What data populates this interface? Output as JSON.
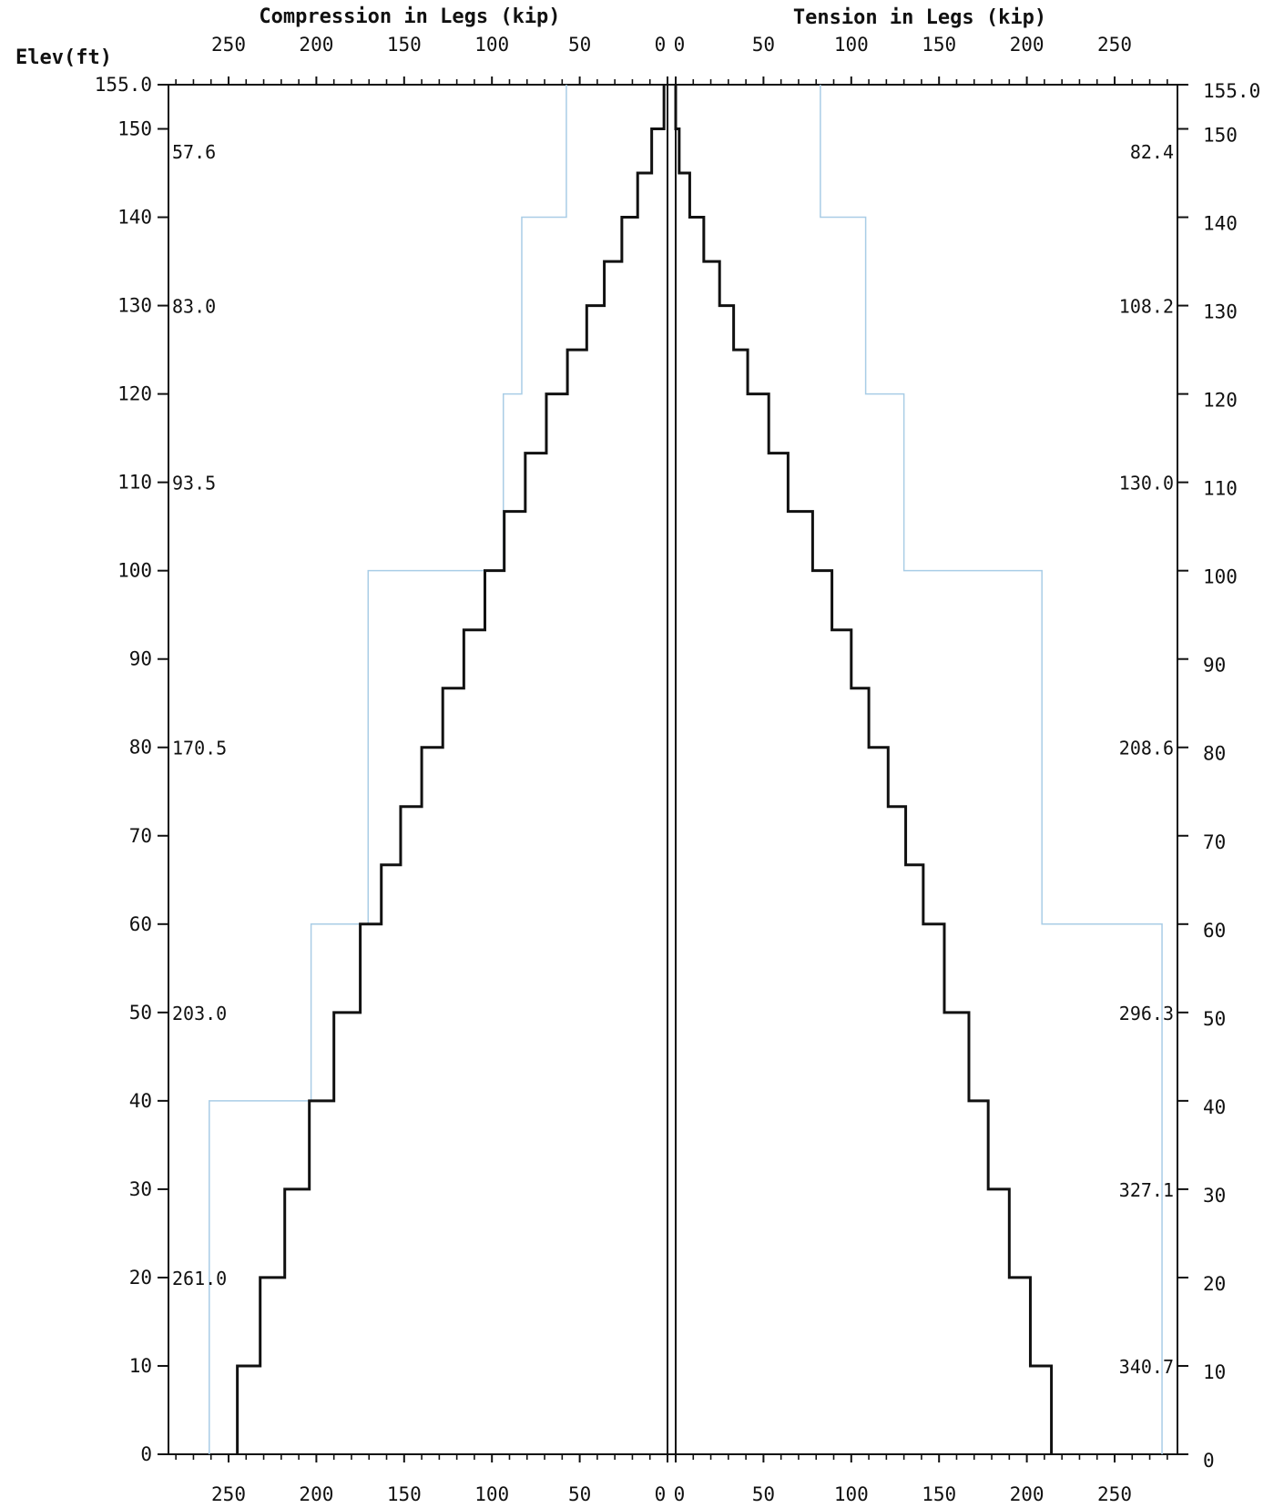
{
  "chart_data": {
    "type": "line",
    "panels": {
      "compression": {
        "title": "Compression in Legs (kip)",
        "ticks": [
          "250",
          "200",
          "150",
          "100",
          "50",
          "0"
        ]
      },
      "tension": {
        "title": "Tension in Legs (kip)",
        "ticks": [
          "0",
          "50",
          "100",
          "150",
          "200",
          "250"
        ]
      }
    },
    "ylabel": "Elev(ft)",
    "ylim": [
      0,
      155
    ],
    "xlim": [
      0,
      280
    ],
    "y_ticks_left": [
      "155.0",
      "150",
      "140",
      "130",
      "120",
      "110",
      "100",
      "90",
      "80",
      "70",
      "60",
      "50",
      "40",
      "30",
      "20",
      "10",
      "0"
    ],
    "y_ticks_right": [
      "155.0",
      "150",
      "140",
      "130",
      "120",
      "110",
      "100",
      "90",
      "80",
      "70",
      "60",
      "50",
      "40",
      "30",
      "20",
      "10",
      "0"
    ],
    "compression_force": [
      {
        "y0": 0,
        "y1": 10,
        "x": 245
      },
      {
        "y0": 10,
        "y1": 20,
        "x": 232
      },
      {
        "y0": 20,
        "y1": 30,
        "x": 218
      },
      {
        "y0": 30,
        "y1": 40,
        "x": 204
      },
      {
        "y0": 40,
        "y1": 50,
        "x": 190
      },
      {
        "y0": 50,
        "y1": 60,
        "x": 175
      },
      {
        "y0": 60,
        "y1": 66.7,
        "x": 163
      },
      {
        "y0": 66.7,
        "y1": 73.3,
        "x": 152
      },
      {
        "y0": 73.3,
        "y1": 80,
        "x": 140
      },
      {
        "y0": 80,
        "y1": 86.7,
        "x": 128
      },
      {
        "y0": 86.7,
        "y1": 93.3,
        "x": 116
      },
      {
        "y0": 93.3,
        "y1": 100,
        "x": 104
      },
      {
        "y0": 100,
        "y1": 106.7,
        "x": 93
      },
      {
        "y0": 106.7,
        "y1": 113.3,
        "x": 81
      },
      {
        "y0": 113.3,
        "y1": 120,
        "x": 69
      },
      {
        "y0": 120,
        "y1": 125,
        "x": 57
      },
      {
        "y0": 125,
        "y1": 130,
        "x": 46
      },
      {
        "y0": 130,
        "y1": 135,
        "x": 36
      },
      {
        "y0": 135,
        "y1": 140,
        "x": 26
      },
      {
        "y0": 140,
        "y1": 145,
        "x": 17
      },
      {
        "y0": 145,
        "y1": 150,
        "x": 9
      },
      {
        "y0": 150,
        "y1": 155,
        "x": 2
      }
    ],
    "tension_force": [
      {
        "y0": 0,
        "y1": 10,
        "x": 214
      },
      {
        "y0": 10,
        "y1": 20,
        "x": 202
      },
      {
        "y0": 20,
        "y1": 30,
        "x": 190
      },
      {
        "y0": 30,
        "y1": 40,
        "x": 178
      },
      {
        "y0": 40,
        "y1": 50,
        "x": 167
      },
      {
        "y0": 50,
        "y1": 60,
        "x": 153
      },
      {
        "y0": 60,
        "y1": 66.7,
        "x": 141
      },
      {
        "y0": 66.7,
        "y1": 73.3,
        "x": 131
      },
      {
        "y0": 73.3,
        "y1": 80,
        "x": 121
      },
      {
        "y0": 80,
        "y1": 86.7,
        "x": 110
      },
      {
        "y0": 86.7,
        "y1": 93.3,
        "x": 100
      },
      {
        "y0": 93.3,
        "y1": 100,
        "x": 89
      },
      {
        "y0": 100,
        "y1": 106.7,
        "x": 78
      },
      {
        "y0": 106.7,
        "y1": 113.3,
        "x": 64
      },
      {
        "y0": 113.3,
        "y1": 120,
        "x": 53
      },
      {
        "y0": 120,
        "y1": 125,
        "x": 41
      },
      {
        "y0": 125,
        "y1": 130,
        "x": 33
      },
      {
        "y0": 130,
        "y1": 135,
        "x": 25
      },
      {
        "y0": 135,
        "y1": 140,
        "x": 16
      },
      {
        "y0": 140,
        "y1": 145,
        "x": 8
      },
      {
        "y0": 145,
        "y1": 150,
        "x": 2
      },
      {
        "y0": 150,
        "y1": 155,
        "x": 0
      }
    ],
    "compression_capacity": [
      {
        "y0": 0,
        "y1": 40,
        "x": 261.0,
        "label": "261.0",
        "label_y": 20
      },
      {
        "y0": 40,
        "y1": 60,
        "x": 203.0,
        "label": "203.0",
        "label_y": 50
      },
      {
        "y0": 60,
        "y1": 100,
        "x": 170.5,
        "label": "170.5",
        "label_y": 80
      },
      {
        "y0": 100,
        "y1": 120,
        "x": 93.5,
        "label": "93.5",
        "label_y": 110
      },
      {
        "y0": 120,
        "y1": 140,
        "x": 83.0,
        "label": "83.0",
        "label_y": 130
      },
      {
        "y0": 140,
        "y1": 155,
        "x": 57.6,
        "label": "57.6",
        "label_y": 147.5
      }
    ],
    "tension_capacity": [
      {
        "y0": 0,
        "y1": 60,
        "x": 340.7,
        "label": "340.7",
        "label_y": 10
      },
      {
        "y0": 0,
        "y1": 0,
        "x": 0,
        "label": "327.1",
        "label_y": 30
      },
      {
        "y0": 60,
        "y1": 100,
        "x": 208.6,
        "label": "296.3",
        "label_y": 50
      },
      {
        "y0": 0,
        "y1": 0,
        "x": 0,
        "label": "208.6",
        "label_y": 80
      },
      {
        "y0": 100,
        "y1": 120,
        "x": 130.0,
        "label": "130.0",
        "label_y": 110
      },
      {
        "y0": 120,
        "y1": 140,
        "x": 108.2,
        "label": "108.2",
        "label_y": 130
      },
      {
        "y0": 140,
        "y1": 155,
        "x": 82.4,
        "label": "82.4",
        "label_y": 147.5
      }
    ],
    "colors": {
      "force": "#111111",
      "capacity": "#a9cde6",
      "axis": "#111111"
    },
    "grid": false
  }
}
